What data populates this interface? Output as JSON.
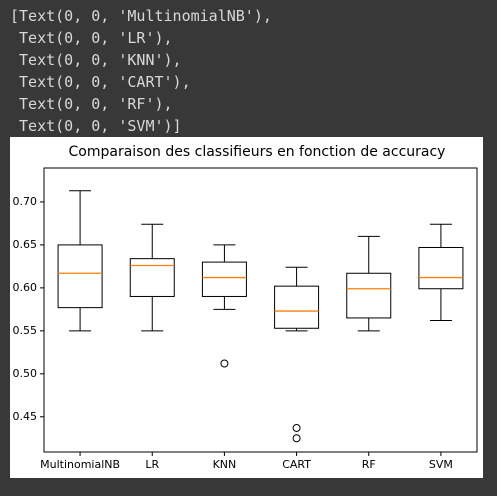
{
  "output_text": [
    "[Text(0, 0, 'MultinomialNB'),",
    " Text(0, 0, 'LR'),",
    " Text(0, 0, 'KNN'),",
    " Text(0, 0, 'CART'),",
    " Text(0, 0, 'RF'),",
    " Text(0, 0, 'SVM')]"
  ],
  "chart_data": {
    "type": "box",
    "title": "Comparaison des classifieurs en fonction de accuracy",
    "categories": [
      "MultinomialNB",
      "LR",
      "KNN",
      "CART",
      "RF",
      "SVM"
    ],
    "boxes": [
      {
        "whislo": 0.55,
        "q1": 0.577,
        "med": 0.617,
        "q3": 0.65,
        "whishi": 0.713,
        "fliers": []
      },
      {
        "whislo": 0.55,
        "q1": 0.59,
        "med": 0.626,
        "q3": 0.634,
        "whishi": 0.674,
        "fliers": []
      },
      {
        "whislo": 0.575,
        "q1": 0.59,
        "med": 0.612,
        "q3": 0.63,
        "whishi": 0.65,
        "fliers": [
          0.512
        ]
      },
      {
        "whislo": 0.55,
        "q1": 0.553,
        "med": 0.573,
        "q3": 0.602,
        "whishi": 0.624,
        "fliers": [
          0.437,
          0.425
        ]
      },
      {
        "whislo": 0.55,
        "q1": 0.565,
        "med": 0.599,
        "q3": 0.617,
        "whishi": 0.66,
        "fliers": []
      },
      {
        "whislo": 0.562,
        "q1": 0.599,
        "med": 0.612,
        "q3": 0.647,
        "whishi": 0.674,
        "fliers": []
      }
    ],
    "box_color": "#000000",
    "median_color": "#ff7f0e",
    "ylim": [
      0.409,
      0.7395
    ],
    "yticks": [
      0.45,
      {
        "value": 0.5,
        "label": "0.50"
      },
      {
        "value": 0.55,
        "label": "0.55"
      },
      {
        "value": 0.6,
        "label": "0.60"
      },
      0.65,
      {
        "value": 0.7,
        "label": "0.70"
      }
    ]
  }
}
